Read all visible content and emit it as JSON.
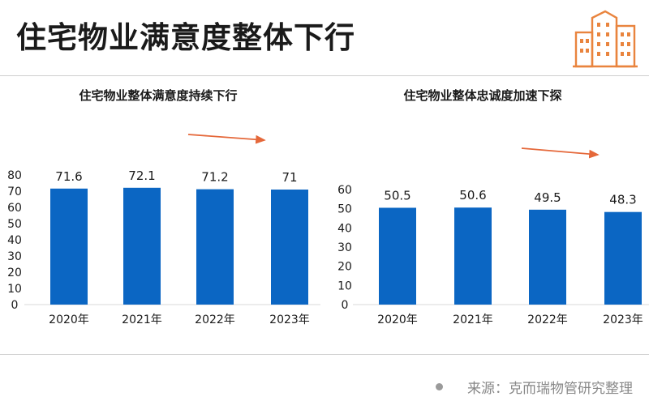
{
  "title": "住宅物业满意度整体下行",
  "source": "来源：克而瑞物管研究整理",
  "colors": {
    "bar": "#0b66c3",
    "arrow": "#e5683a",
    "icon": "#e9843e"
  },
  "chart_data": [
    {
      "type": "bar",
      "title": "住宅物业整体满意度持续下行",
      "categories": [
        "2020年",
        "2021年",
        "2022年",
        "2023年"
      ],
      "values": [
        71.6,
        72.1,
        71.2,
        71
      ],
      "value_labels": [
        "71.6",
        "72.1",
        "71.2",
        "71"
      ],
      "y_ticks": [
        "0",
        "10",
        "20",
        "30",
        "40",
        "50",
        "60",
        "70",
        "80"
      ],
      "ylim": [
        0,
        80
      ],
      "grid": false,
      "annotation": "downward-trend-arrow"
    },
    {
      "type": "bar",
      "title": "住宅物业整体忠诚度加速下探",
      "categories": [
        "2020年",
        "2021年",
        "2022年",
        "2023年"
      ],
      "values": [
        50.5,
        50.6,
        49.5,
        48.3
      ],
      "value_labels": [
        "50.5",
        "50.6",
        "49.5",
        "48.3"
      ],
      "y_ticks": [
        "0",
        "10",
        "20",
        "30",
        "40",
        "50",
        "60"
      ],
      "ylim": [
        0,
        60
      ],
      "grid": false,
      "annotation": "downward-trend-arrow"
    }
  ]
}
